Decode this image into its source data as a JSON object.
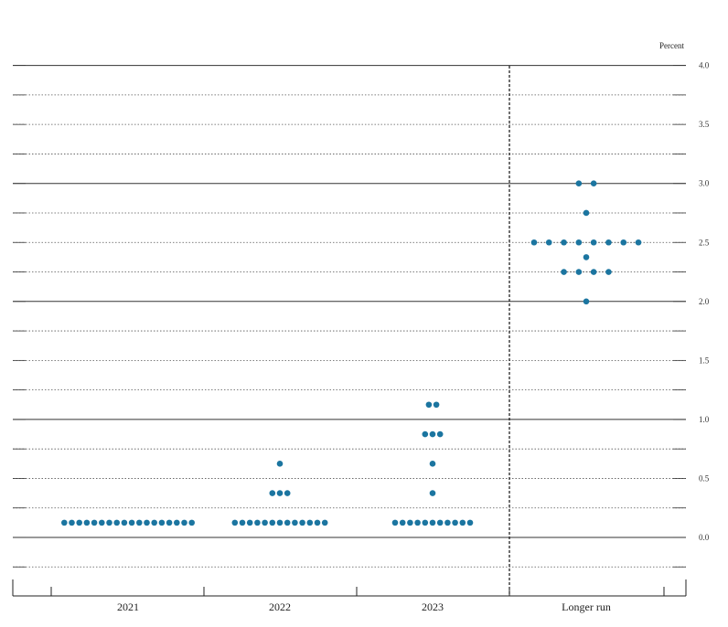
{
  "chart_data": {
    "type": "scatter",
    "unit_label": "Percent",
    "categories": [
      "2021",
      "2022",
      "2023",
      "Longer run"
    ],
    "ylim": [
      -0.25,
      4.0
    ],
    "y_ticks": [
      {
        "value": 4.0,
        "label": "4.0"
      },
      {
        "value": 3.5,
        "label": "3.5"
      },
      {
        "value": 3.0,
        "label": "3.0"
      },
      {
        "value": 2.5,
        "label": "2.5"
      },
      {
        "value": 2.0,
        "label": "2.0"
      },
      {
        "value": 1.5,
        "label": "1.5"
      },
      {
        "value": 1.0,
        "label": "1.0"
      },
      {
        "value": 0.5,
        "label": "0.5"
      },
      {
        "value": 0.0,
        "label": "0.0"
      }
    ],
    "grid": true,
    "dot_color": "#1b75a0",
    "points": [
      {
        "category": "2021",
        "values": [
          {
            "y": 0.125,
            "count": 18
          }
        ]
      },
      {
        "category": "2022",
        "values": [
          {
            "y": 0.125,
            "count": 13
          },
          {
            "y": 0.375,
            "count": 3
          },
          {
            "y": 0.625,
            "count": 1
          }
        ]
      },
      {
        "category": "2023",
        "values": [
          {
            "y": 0.125,
            "count": 11
          },
          {
            "y": 0.375,
            "count": 1
          },
          {
            "y": 0.625,
            "count": 1
          },
          {
            "y": 0.875,
            "count": 3
          },
          {
            "y": 1.125,
            "count": 2
          }
        ]
      },
      {
        "category": "Longer run",
        "values": [
          {
            "y": 2.0,
            "count": 1
          },
          {
            "y": 2.25,
            "count": 4
          },
          {
            "y": 2.375,
            "count": 1
          },
          {
            "y": 2.5,
            "count": 8
          },
          {
            "y": 2.75,
            "count": 1
          },
          {
            "y": 3.0,
            "count": 2
          }
        ]
      }
    ]
  }
}
